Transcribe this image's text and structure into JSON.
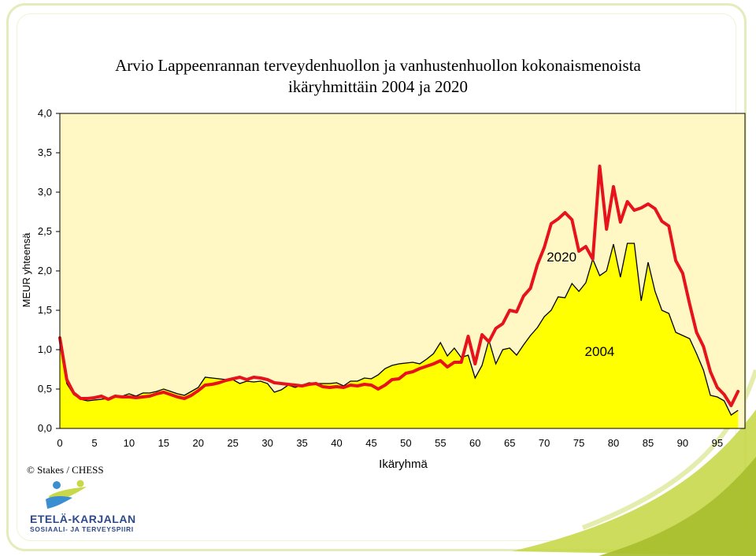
{
  "title_line1": "Arvio Lappeenrannan terveydenhuollon ja vanhustenhuollon kokonaismenoista",
  "title_line2": "ikäryhmittäin 2004 ja 2020",
  "copyright": "© Stakes  / CHESS",
  "logo": {
    "name": "ETELÄ-KARJALAN",
    "subtitle": "SOSIAALI- JA TERVEYSPIIRI"
  },
  "colors": {
    "plot_background": "#fff7c4",
    "area_2004": "#ffff00",
    "line_2004": "#000000",
    "line_2020": "#e6131c",
    "frame_accent": "#c8d84a"
  },
  "chart_data": {
    "type": "area",
    "xlabel": "Ikäryhmä",
    "ylabel": "MEUR yhteensä",
    "xlim": [
      0,
      99
    ],
    "ylim": [
      0,
      4.0
    ],
    "x_ticks": [
      "0",
      "5",
      "10",
      "15",
      "20",
      "25",
      "30",
      "35",
      "40",
      "45",
      "50",
      "55",
      "60",
      "65",
      "70",
      "75",
      "80",
      "85",
      "90",
      "95"
    ],
    "y_ticks": [
      "0,0",
      "0,5",
      "1,0",
      "1,5",
      "2,0",
      "2,5",
      "3,0",
      "3,5",
      "4,0"
    ],
    "grid": false,
    "legend": "none",
    "annotations": [
      "2020",
      "2004"
    ],
    "series": [
      {
        "name": "2004",
        "style": "filled-area",
        "values": [
          1.12,
          0.57,
          0.43,
          0.37,
          0.35,
          0.36,
          0.37,
          0.38,
          0.42,
          0.41,
          0.44,
          0.41,
          0.45,
          0.45,
          0.47,
          0.5,
          0.47,
          0.44,
          0.42,
          0.47,
          0.52,
          0.65,
          0.64,
          0.63,
          0.62,
          0.62,
          0.57,
          0.6,
          0.59,
          0.6,
          0.57,
          0.46,
          0.49,
          0.55,
          0.52,
          0.55,
          0.58,
          0.57,
          0.57,
          0.57,
          0.58,
          0.54,
          0.6,
          0.6,
          0.64,
          0.63,
          0.68,
          0.76,
          0.8,
          0.82,
          0.83,
          0.84,
          0.82,
          0.88,
          0.95,
          1.09,
          0.92,
          1.02,
          0.9,
          0.93,
          0.64,
          0.8,
          1.12,
          0.82,
          1.0,
          1.02,
          0.93,
          1.06,
          1.18,
          1.28,
          1.42,
          1.5,
          1.67,
          1.66,
          1.84,
          1.74,
          1.85,
          2.15,
          1.94,
          2.0,
          2.34,
          1.92,
          2.35,
          2.35,
          1.62,
          2.11,
          1.74,
          1.5,
          1.46,
          1.22,
          1.18,
          1.14,
          0.95,
          0.74,
          0.42,
          0.4,
          0.35,
          0.17,
          0.23
        ]
      },
      {
        "name": "2020",
        "style": "line",
        "values": [
          1.15,
          0.62,
          0.45,
          0.38,
          0.38,
          0.39,
          0.41,
          0.37,
          0.41,
          0.4,
          0.4,
          0.39,
          0.4,
          0.41,
          0.44,
          0.46,
          0.43,
          0.4,
          0.38,
          0.42,
          0.48,
          0.55,
          0.56,
          0.58,
          0.61,
          0.63,
          0.65,
          0.62,
          0.65,
          0.64,
          0.62,
          0.58,
          0.57,
          0.56,
          0.55,
          0.54,
          0.56,
          0.57,
          0.53,
          0.52,
          0.53,
          0.52,
          0.55,
          0.54,
          0.56,
          0.55,
          0.5,
          0.55,
          0.62,
          0.63,
          0.7,
          0.72,
          0.76,
          0.79,
          0.82,
          0.86,
          0.78,
          0.84,
          0.84,
          1.17,
          0.82,
          1.19,
          1.1,
          1.27,
          1.33,
          1.5,
          1.48,
          1.68,
          1.78,
          2.08,
          2.3,
          2.6,
          2.66,
          2.74,
          2.65,
          2.25,
          2.31,
          2.15,
          3.33,
          2.53,
          3.07,
          2.62,
          2.88,
          2.77,
          2.8,
          2.85,
          2.79,
          2.63,
          2.57,
          2.13,
          1.97,
          1.58,
          1.22,
          1.04,
          0.72,
          0.52,
          0.43,
          0.29,
          0.47
        ]
      }
    ]
  }
}
